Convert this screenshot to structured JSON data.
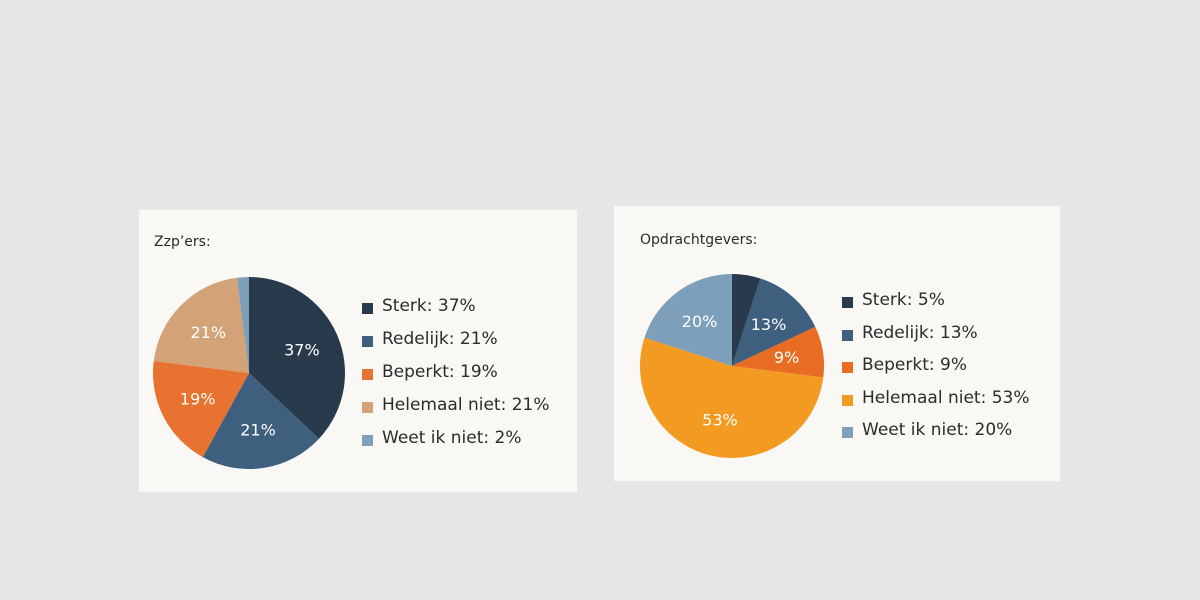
{
  "chart_data": [
    {
      "type": "pie",
      "title": "Zzp’ers:",
      "categories": [
        "Sterk",
        "Redelijk",
        "Beperkt",
        "Helemaal niet",
        "Weet ik niet"
      ],
      "values": [
        37,
        21,
        19,
        21,
        2
      ],
      "value_labels": [
        "37%",
        "21%",
        "19%",
        "21%",
        "2%"
      ],
      "legend_labels": [
        "Sterk: 37%",
        "Redelijk: 21%",
        "Beperkt: 19%",
        "Helemaal niet: 21%",
        "Weet ik niet: 2%"
      ],
      "colors": [
        "#283a4c",
        "#3e5f7e",
        "#e87230",
        "#d4a277",
        "#7e9fba"
      ],
      "label_colors": [
        "#ffffff",
        "#ffffff",
        "#ffffff",
        "#ffffff",
        "#ffffff"
      ],
      "show_slice_label": [
        true,
        true,
        true,
        true,
        false
      ],
      "legend_position": "right"
    },
    {
      "type": "pie",
      "title": "Opdrachtgevers:",
      "categories": [
        "Sterk",
        "Redelijk",
        "Beperkt",
        "Helemaal niet",
        "Weet ik niet"
      ],
      "values": [
        5,
        13,
        9,
        53,
        20
      ],
      "value_labels": [
        "5%",
        "13%",
        "9%",
        "53%",
        "20%"
      ],
      "legend_labels": [
        "Sterk: 5%",
        "Redelijk: 13%",
        "Beperkt: 9%",
        "Helemaal niet: 53%",
        "Weet ik niet: 20%"
      ],
      "colors": [
        "#283a4c",
        "#3e5f7e",
        "#e86c22",
        "#f29a22",
        "#7e9fba"
      ],
      "label_colors": [
        "#ffffff",
        "#ffffff",
        "#ffffff",
        "#ffffff",
        "#ffffff"
      ],
      "show_slice_label": [
        false,
        true,
        true,
        true,
        true
      ],
      "legend_position": "right"
    }
  ]
}
